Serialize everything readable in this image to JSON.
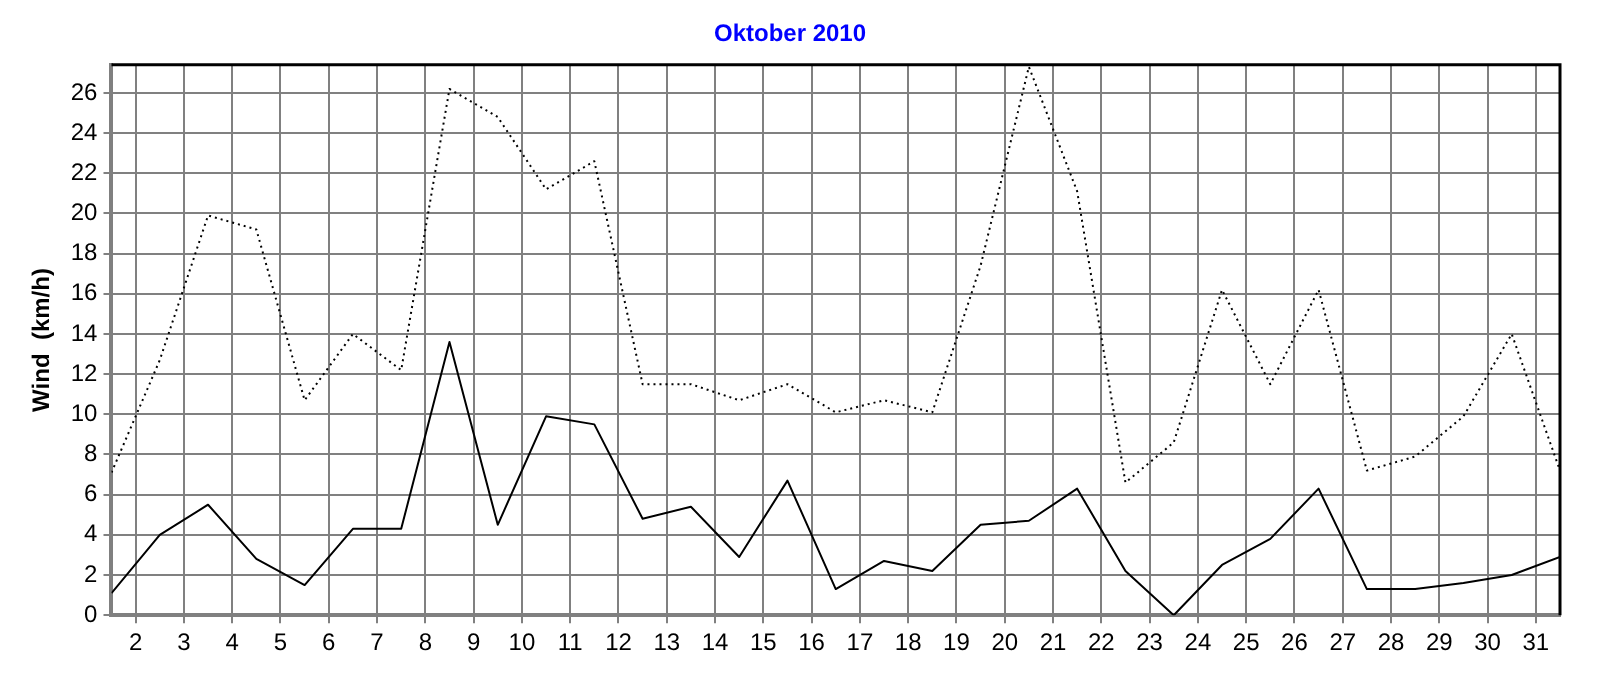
{
  "chart_data": {
    "type": "line",
    "title": "Oktober 2010",
    "ylabel": "Wind  (km/h)",
    "x": [
      1.5,
      2.5,
      3.5,
      4.5,
      5.5,
      6.5,
      7.5,
      8.5,
      9.5,
      10.5,
      11.5,
      12.5,
      13.5,
      14.5,
      15.5,
      16.5,
      17.5,
      18.5,
      19.5,
      20.5,
      21.5,
      22.5,
      23.5,
      24.5,
      25.5,
      26.5,
      27.5,
      28.5,
      29.5,
      30.5,
      31.5
    ],
    "xlim": [
      1.5,
      31.5
    ],
    "xticks": [
      2,
      3,
      4,
      5,
      6,
      7,
      8,
      9,
      10,
      11,
      12,
      13,
      14,
      15,
      16,
      17,
      18,
      19,
      20,
      21,
      22,
      23,
      24,
      25,
      26,
      27,
      28,
      29,
      30,
      31
    ],
    "ylim": [
      0,
      27.4
    ],
    "yticks": [
      0,
      2,
      4,
      6,
      8,
      10,
      12,
      14,
      16,
      18,
      20,
      22,
      24,
      26
    ],
    "grid": true,
    "legend": false,
    "marker": "none",
    "series": [
      {
        "color": "#000000",
        "line_style": "solid",
        "values": [
          1.1,
          4.0,
          5.5,
          2.8,
          1.5,
          4.3,
          4.3,
          13.6,
          4.5,
          9.9,
          9.5,
          4.8,
          5.4,
          2.9,
          6.7,
          1.3,
          2.7,
          2.2,
          4.5,
          4.7,
          6.3,
          2.2,
          0,
          2.5,
          3.8,
          6.3,
          1.3,
          1.3,
          1.6,
          2.0,
          2.9
        ]
      },
      {
        "color": "#000000",
        "line_style": "dotted",
        "values": [
          7.1,
          12.7,
          19.9,
          19.2,
          10.7,
          14.0,
          12.2,
          26.2,
          24.8,
          21.2,
          22.6,
          11.5,
          11.5,
          10.7,
          11.5,
          10.1,
          10.7,
          10.1,
          17.4,
          27.3,
          21.1,
          6.6,
          8.6,
          16.2,
          11.5,
          16.2,
          7.2,
          7.9,
          9.9,
          14.0,
          7.2
        ]
      }
    ]
  }
}
